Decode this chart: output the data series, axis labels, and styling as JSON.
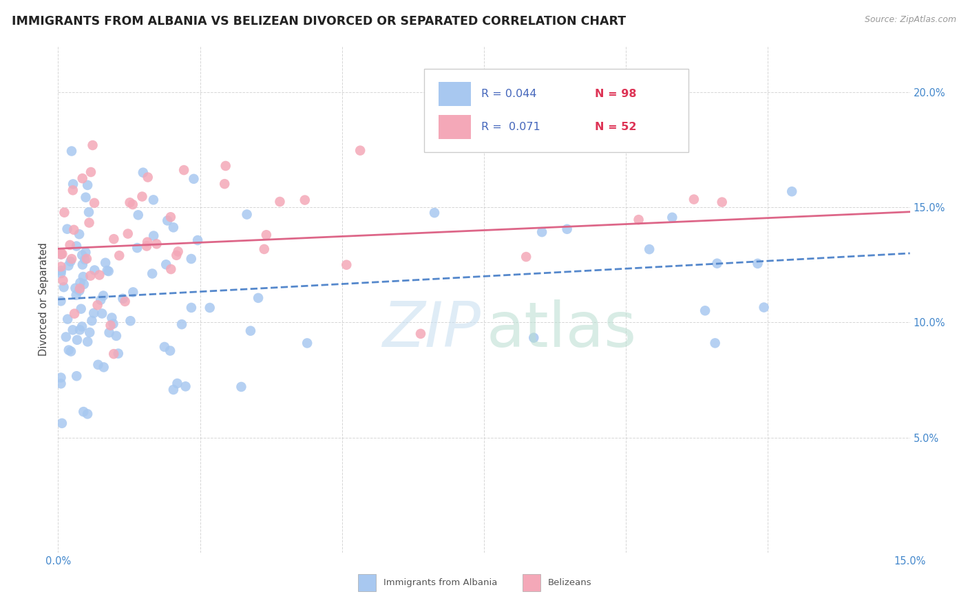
{
  "title": "IMMIGRANTS FROM ALBANIA VS BELIZEAN DIVORCED OR SEPARATED CORRELATION CHART",
  "source": "Source: ZipAtlas.com",
  "ylabel": "Divorced or Separated",
  "xlim": [
    0.0,
    0.15
  ],
  "ylim": [
    0.0,
    0.22
  ],
  "blue_color": "#a8c8f0",
  "pink_color": "#f4a8b8",
  "blue_line_color": "#5588cc",
  "pink_line_color": "#dd6688",
  "r_color": "#4466bb",
  "n_color": "#dd3355",
  "axis_color": "#4488cc",
  "grid_color": "#cccccc",
  "title_color": "#222222",
  "source_color": "#999999",
  "legend_r1": "R = 0.044",
  "legend_n1": "N = 98",
  "legend_r2": "R =  0.071",
  "legend_n2": "N = 52"
}
